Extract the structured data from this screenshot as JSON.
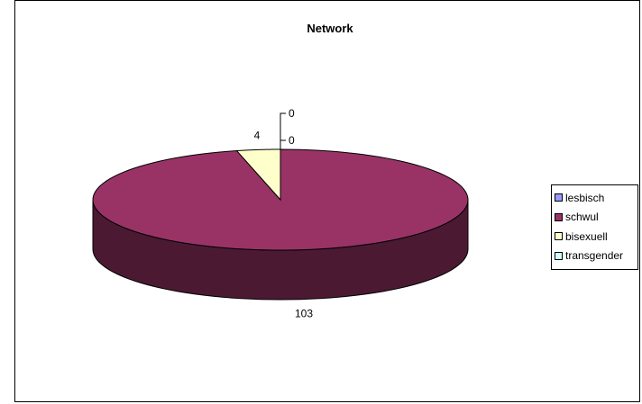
{
  "chart_data": {
    "type": "pie",
    "style": "3d-exploded-pie",
    "title": "Network",
    "categories": [
      "lesbisch",
      "schwul",
      "bisexuell",
      "transgender"
    ],
    "values": [
      0,
      103,
      4,
      0
    ],
    "colors": [
      "#9999ff",
      "#993366",
      "#ffffcc",
      "#ccffff"
    ],
    "side_colors": [
      "#4d4d80",
      "#4b1a32",
      "#d9d9a0",
      "#80a0a0"
    ],
    "data_labels": [
      "0",
      "103",
      "4",
      "0"
    ],
    "legend_position": "right"
  }
}
